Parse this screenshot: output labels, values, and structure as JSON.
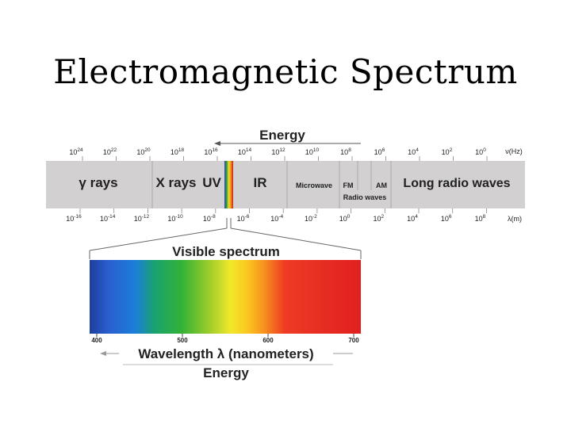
{
  "slide": {
    "title": "Electromagnetic Spectrum"
  },
  "top_axis": {
    "label": "Energy",
    "unit": "ν(Hz)",
    "ticks": [
      {
        "base": "10",
        "exp": "24"
      },
      {
        "base": "10",
        "exp": "22"
      },
      {
        "base": "10",
        "exp": "20"
      },
      {
        "base": "10",
        "exp": "18"
      },
      {
        "base": "10",
        "exp": "16"
      },
      {
        "base": "10",
        "exp": "14"
      },
      {
        "base": "10",
        "exp": "12"
      },
      {
        "base": "10",
        "exp": "10"
      },
      {
        "base": "10",
        "exp": "8"
      },
      {
        "base": "10",
        "exp": "6"
      },
      {
        "base": "10",
        "exp": "4"
      },
      {
        "base": "10",
        "exp": "2"
      },
      {
        "base": "10",
        "exp": "0"
      }
    ]
  },
  "bottom_axis": {
    "unit": "λ(m)",
    "ticks": [
      {
        "base": "10",
        "exp": "-16"
      },
      {
        "base": "10",
        "exp": "-14"
      },
      {
        "base": "10",
        "exp": "-12"
      },
      {
        "base": "10",
        "exp": "-10"
      },
      {
        "base": "10",
        "exp": "-8"
      },
      {
        "base": "10",
        "exp": "-6"
      },
      {
        "base": "10",
        "exp": "-4"
      },
      {
        "base": "10",
        "exp": "-2"
      },
      {
        "base": "10",
        "exp": "0"
      },
      {
        "base": "10",
        "exp": "2"
      },
      {
        "base": "10",
        "exp": "4"
      },
      {
        "base": "10",
        "exp": "6"
      },
      {
        "base": "10",
        "exp": "8"
      }
    ]
  },
  "regions": {
    "gamma": "γ rays",
    "xrays": "X rays",
    "uv": "UV",
    "ir": "IR",
    "microwave": "Microwave",
    "fm": "FM",
    "am": "AM",
    "radio": "Radio waves",
    "long_radio": "Long radio waves"
  },
  "visible": {
    "title": "Visible spectrum",
    "ticks": [
      "400",
      "500",
      "600",
      "700"
    ],
    "axis_label": "Wavelength λ (nanometers)",
    "energy_label": "Energy"
  },
  "colors": {
    "band": "#d2d0d0",
    "divider": "#a9a7a7"
  }
}
